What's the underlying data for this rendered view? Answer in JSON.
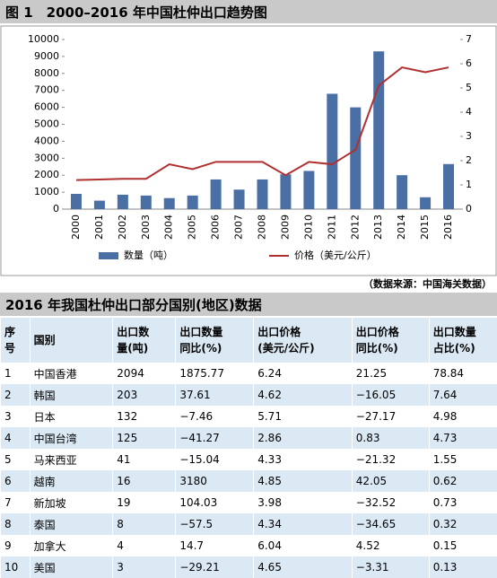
{
  "chart_data": {
    "type": "bar-line",
    "title": "图 1　2000–2016 年中国杜仲出口趋势图",
    "categories": [
      "2000",
      "2001",
      "2002",
      "2003",
      "2004",
      "2005",
      "2006",
      "2007",
      "2008",
      "2009",
      "2010",
      "2011",
      "2012",
      "2013",
      "2014",
      "2015",
      "2016"
    ],
    "series": [
      {
        "name": "数量（吨）",
        "color": "#4a6fa5",
        "type": "bar",
        "values": [
          900,
          500,
          850,
          800,
          650,
          800,
          1750,
          1150,
          1750,
          2050,
          2250,
          6800,
          6000,
          9300,
          2000,
          700,
          2656
        ]
      },
      {
        "name": "价格（美元/公斤）",
        "color": "#b03030",
        "type": "line",
        "axis": "y2",
        "values": [
          1.2,
          1.22,
          1.25,
          1.25,
          1.85,
          1.65,
          1.95,
          1.95,
          1.95,
          1.4,
          1.95,
          1.85,
          2.45,
          5.1,
          5.85,
          5.65,
          5.85
        ]
      }
    ],
    "ylim": [
      0,
      10000
    ],
    "yticks": [
      0,
      1000,
      2000,
      3000,
      4000,
      5000,
      6000,
      7000,
      8000,
      9000,
      10000
    ],
    "y2lim": [
      0,
      7
    ],
    "y2ticks": [
      0,
      1,
      2,
      3,
      4,
      5,
      6,
      7
    ],
    "grid": false
  },
  "source": "（数据来源：中国海关数据）",
  "table": {
    "title": "2016 年我国杜仲出口部分国别(地区)数据",
    "header": [
      [
        "序",
        "号"
      ],
      [
        "国别"
      ],
      [
        "出口数",
        "量(吨)"
      ],
      [
        "出口数量",
        "同比(%)"
      ],
      [
        "出口价格",
        "(美元/公斤)"
      ],
      [
        "出口价格",
        "同比(%)"
      ],
      [
        "出口数量",
        "占比(%)"
      ]
    ],
    "rows": [
      [
        "1",
        "中国香港",
        "2094",
        "1875.77",
        "6.24",
        "21.25",
        "78.84"
      ],
      [
        "2",
        "韩国",
        "203",
        "37.61",
        "4.62",
        "−16.05",
        "7.64"
      ],
      [
        "3",
        "日本",
        "132",
        "−7.46",
        "5.71",
        "−27.17",
        "4.98"
      ],
      [
        "4",
        "中国台湾",
        "125",
        "−41.27",
        "2.86",
        "0.83",
        "4.73"
      ],
      [
        "5",
        "马来西亚",
        "41",
        "−15.04",
        "4.33",
        "−21.32",
        "1.55"
      ],
      [
        "6",
        "越南",
        "16",
        "3180",
        "4.85",
        "42.05",
        "0.62"
      ],
      [
        "7",
        "新加坡",
        "19",
        "104.03",
        "3.98",
        "−32.52",
        "0.73"
      ],
      [
        "8",
        "泰国",
        "8",
        "−57.5",
        "4.34",
        "−34.65",
        "0.32"
      ],
      [
        "9",
        "加拿大",
        "4",
        "14.7",
        "6.04",
        "4.52",
        "0.15"
      ],
      [
        "10",
        "美国",
        "3",
        "−29.21",
        "4.65",
        "−3.31",
        "0.13"
      ]
    ]
  }
}
